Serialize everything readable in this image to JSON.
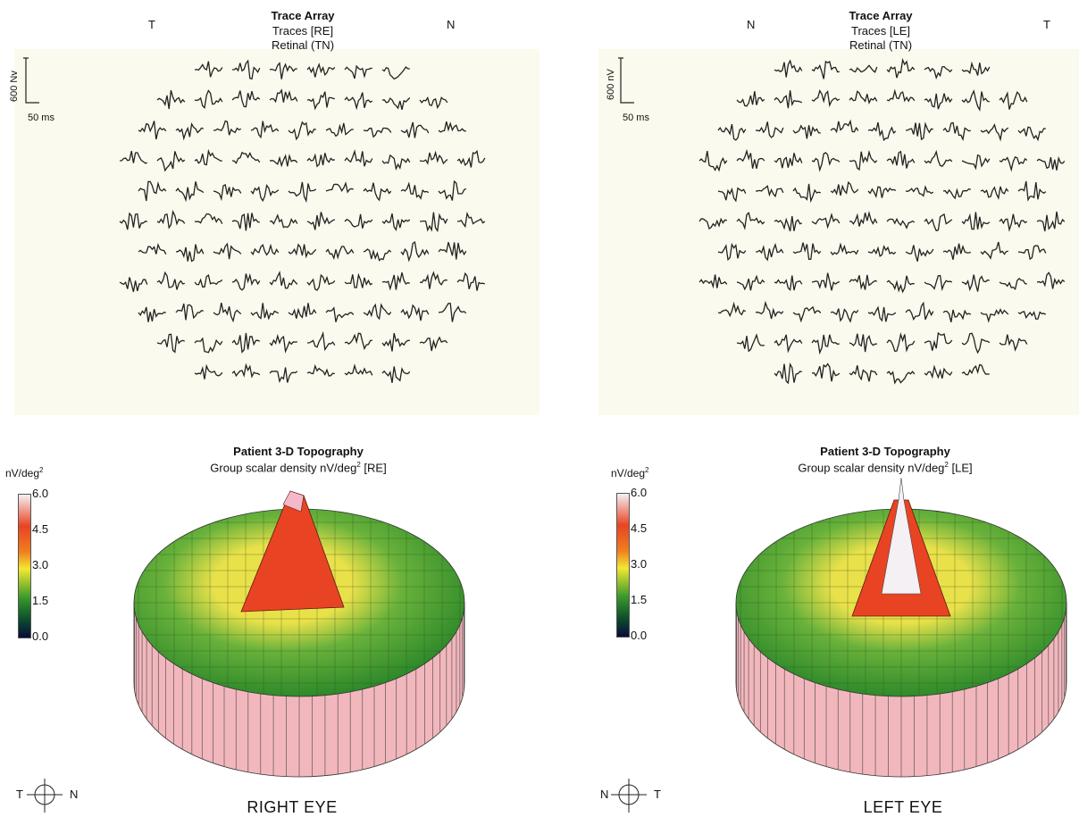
{
  "panels": [
    {
      "id": "right",
      "side_left": "T",
      "side_right": "N",
      "trace_title": "Trace Array",
      "trace_sub1": "Traces [RE]",
      "trace_sub2": "Retinal (TN)",
      "scale_v": "600 Nv",
      "scale_h": "50 ms",
      "topo_title": "Patient 3-D Topography",
      "topo_sub": "Group scalar density nV/deg",
      "topo_sup": "2",
      "topo_eye": " [RE]",
      "unit": "nV/deg",
      "unit_sup": "2",
      "colorbar_ticks": [
        "6.0",
        "4.5",
        "3.0",
        "1.5",
        "0.0"
      ],
      "compass_left": "T",
      "compass_right": "N",
      "eye_label": "RIGHT EYE",
      "trace_rows": [
        6,
        8,
        9,
        10,
        9,
        10,
        9,
        10,
        9,
        8,
        6
      ]
    },
    {
      "id": "left",
      "side_left": "N",
      "side_right": "T",
      "trace_title": "Trace Array",
      "trace_sub1": "Traces [LE]",
      "trace_sub2": "Retinal (TN)",
      "scale_v": "600 nV",
      "scale_h": "50 ms",
      "topo_title": "Patient 3-D Topography",
      "topo_sub": "Group scalar density nV/deg",
      "topo_sup": "2",
      "topo_eye": " [LE]",
      "unit": "nV/deg",
      "unit_sup": "2",
      "colorbar_ticks": [
        "6.0",
        "4.5",
        "3.0",
        "1.5",
        "0.0"
      ],
      "compass_left": "N",
      "compass_right": "T",
      "eye_label": "LEFT EYE",
      "trace_rows": [
        6,
        8,
        9,
        10,
        9,
        10,
        9,
        10,
        9,
        8,
        6
      ]
    }
  ],
  "colors": {
    "bar_high": "#f5f0f3",
    "bar_red": "#e0351f",
    "bar_orange": "#f07f1e",
    "bar_yellow": "#f2e832",
    "bar_green": "#3a9a2a",
    "bar_darkgreen": "#0b4a2c",
    "bar_low": "#0a0a3c",
    "base_pink": "#f2b7bd",
    "surface_green": "#69b23b",
    "surface_yellow": "#e9e14a",
    "peak_red": "#e84424"
  }
}
